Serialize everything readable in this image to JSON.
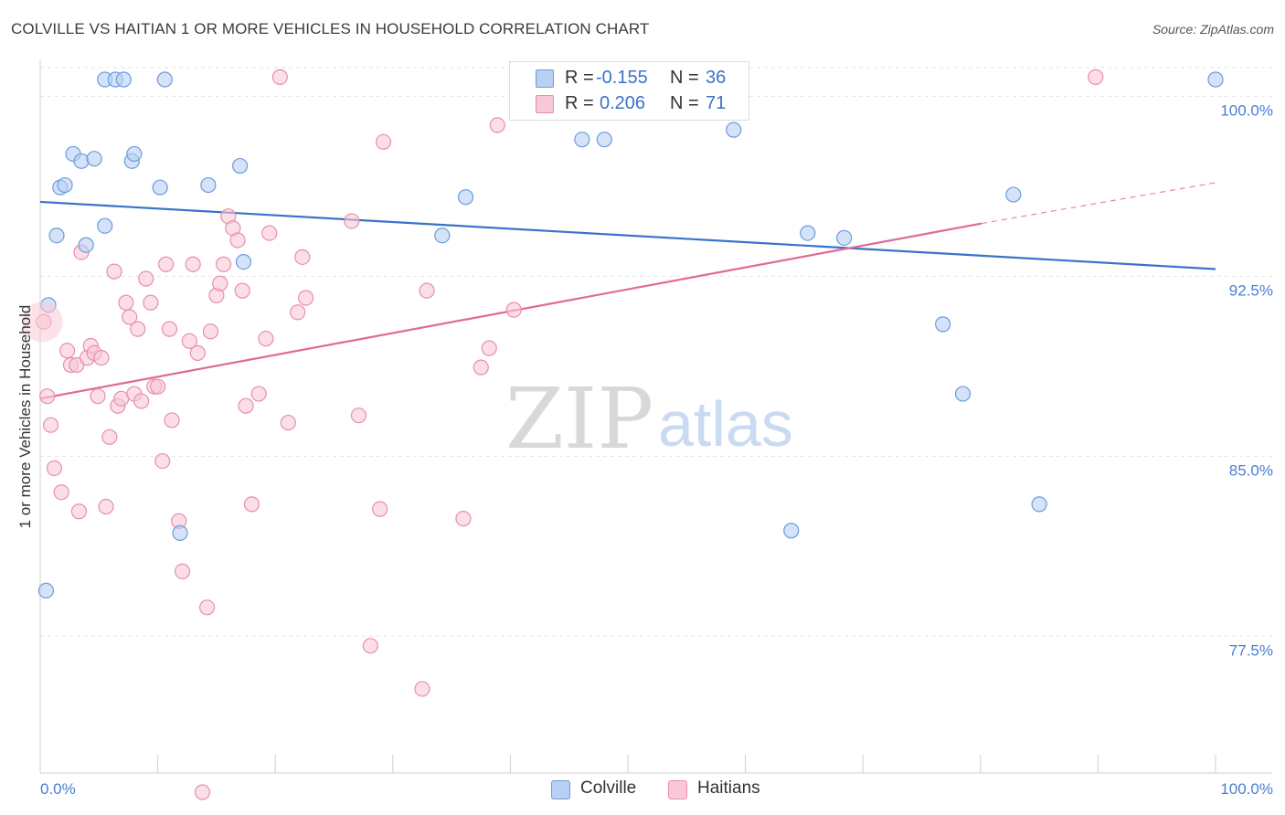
{
  "title": "COLVILLE VS HAITIAN 1 OR MORE VEHICLES IN HOUSEHOLD CORRELATION CHART",
  "source": "Source: ZipAtlas.com",
  "watermark": {
    "zip": "ZIP",
    "atlas": "atlas"
  },
  "legend": {
    "rows": [
      {
        "r_label": "R =",
        "r_value": "-0.155",
        "n_label": "N =",
        "n_value": "36"
      },
      {
        "r_label": "R =",
        "r_value": "0.206",
        "n_label": "N =",
        "n_value": "71"
      }
    ]
  },
  "bottom_legend": {
    "colville": "Colville",
    "haitians": "Haitians"
  },
  "chart_data": {
    "type": "scatter",
    "title": "COLVILLE VS HAITIAN 1 OR MORE VEHICLES IN HOUSEHOLD CORRELATION CHART",
    "xlabel": "",
    "ylabel": "1 or more Vehicles in Household",
    "xlim": [
      0,
      100
    ],
    "ylim": [
      71.8,
      101.5
    ],
    "x_tick_labels": [
      "0.0%",
      "100.0%"
    ],
    "y_ticks": [
      77.5,
      85.0,
      92.5,
      100.0
    ],
    "y_tick_labels": [
      "77.5%",
      "85.0%",
      "92.5%",
      "100.0%"
    ],
    "grid": true,
    "legend_position": "top-center",
    "colors": {
      "colville_fill": "#b8d0f2",
      "colville_stroke": "#6b9be0",
      "colville_line": "#3a72c9",
      "haitians_fill": "#f8c8d6",
      "haitians_stroke": "#e88fab",
      "haitians_line": "#e06a95",
      "axis_text": "#4a7fd4"
    },
    "series": [
      {
        "name": "Colville",
        "points": [
          [
            0.5,
            79.4
          ],
          [
            0.7,
            91.3
          ],
          [
            1.4,
            94.2
          ],
          [
            1.7,
            96.2
          ],
          [
            2.1,
            96.3
          ],
          [
            2.8,
            97.6
          ],
          [
            3.5,
            97.3
          ],
          [
            3.9,
            93.8
          ],
          [
            4.6,
            97.4
          ],
          [
            5.5,
            94.6
          ],
          [
            5.5,
            100.7
          ],
          [
            6.4,
            100.7
          ],
          [
            7.1,
            100.7
          ],
          [
            7.8,
            97.3
          ],
          [
            8.0,
            97.6
          ],
          [
            10.2,
            96.2
          ],
          [
            10.6,
            100.7
          ],
          [
            11.9,
            81.8
          ],
          [
            14.3,
            96.3
          ],
          [
            17.0,
            97.1
          ],
          [
            17.3,
            93.1
          ],
          [
            34.2,
            94.2
          ],
          [
            36.2,
            95.8
          ],
          [
            40.6,
            100.7
          ],
          [
            46.1,
            98.2
          ],
          [
            48.0,
            98.2
          ],
          [
            53.2,
            100.7
          ],
          [
            59.0,
            98.6
          ],
          [
            63.9,
            81.9
          ],
          [
            65.3,
            94.3
          ],
          [
            68.4,
            94.1
          ],
          [
            76.8,
            90.5
          ],
          [
            78.5,
            87.6
          ],
          [
            82.8,
            95.9
          ],
          [
            85.0,
            83.0
          ],
          [
            100.0,
            100.7
          ]
        ],
        "trend": {
          "x": [
            0,
            100
          ],
          "y": [
            95.6,
            92.8
          ]
        }
      },
      {
        "name": "Haitians",
        "points": [
          [
            0.3,
            90.6
          ],
          [
            0.6,
            87.5
          ],
          [
            0.9,
            86.3
          ],
          [
            1.2,
            84.5
          ],
          [
            1.8,
            83.5
          ],
          [
            2.3,
            89.4
          ],
          [
            2.6,
            88.8
          ],
          [
            3.1,
            88.8
          ],
          [
            3.3,
            82.7
          ],
          [
            3.5,
            93.5
          ],
          [
            4.0,
            89.1
          ],
          [
            4.3,
            89.6
          ],
          [
            4.6,
            89.3
          ],
          [
            4.9,
            87.5
          ],
          [
            5.2,
            89.1
          ],
          [
            5.6,
            82.9
          ],
          [
            5.9,
            85.8
          ],
          [
            6.3,
            92.7
          ],
          [
            6.6,
            87.1
          ],
          [
            6.9,
            87.4
          ],
          [
            7.3,
            91.4
          ],
          [
            7.6,
            90.8
          ],
          [
            8.0,
            87.6
          ],
          [
            8.3,
            90.3
          ],
          [
            8.6,
            87.3
          ],
          [
            9.0,
            92.4
          ],
          [
            9.4,
            91.4
          ],
          [
            9.7,
            87.9
          ],
          [
            10.0,
            87.9
          ],
          [
            10.4,
            84.8
          ],
          [
            10.7,
            93.0
          ],
          [
            11.0,
            90.3
          ],
          [
            11.2,
            86.5
          ],
          [
            11.8,
            82.3
          ],
          [
            12.1,
            80.2
          ],
          [
            12.7,
            89.8
          ],
          [
            13.0,
            93.0
          ],
          [
            13.4,
            89.3
          ],
          [
            13.8,
            71.0
          ],
          [
            14.2,
            78.7
          ],
          [
            14.5,
            90.2
          ],
          [
            15.0,
            91.7
          ],
          [
            15.3,
            92.2
          ],
          [
            15.6,
            93.0
          ],
          [
            16.0,
            95.0
          ],
          [
            16.4,
            94.5
          ],
          [
            16.8,
            94.0
          ],
          [
            17.2,
            91.9
          ],
          [
            17.5,
            87.1
          ],
          [
            18.0,
            83.0
          ],
          [
            18.6,
            87.6
          ],
          [
            19.2,
            89.9
          ],
          [
            19.5,
            94.3
          ],
          [
            20.4,
            100.8
          ],
          [
            21.1,
            86.4
          ],
          [
            21.9,
            91.0
          ],
          [
            22.3,
            93.3
          ],
          [
            22.6,
            91.6
          ],
          [
            26.5,
            94.8
          ],
          [
            27.1,
            86.7
          ],
          [
            28.1,
            77.1
          ],
          [
            28.9,
            82.8
          ],
          [
            29.2,
            98.1
          ],
          [
            32.5,
            75.3
          ],
          [
            32.9,
            91.9
          ],
          [
            36.0,
            82.4
          ],
          [
            37.5,
            88.7
          ],
          [
            38.2,
            89.5
          ],
          [
            38.9,
            98.8
          ],
          [
            40.3,
            91.1
          ],
          [
            89.8,
            100.8
          ]
        ],
        "trend": {
          "x": [
            0,
            80.1
          ],
          "y": [
            87.4,
            94.7
          ]
        },
        "trend_dashed": {
          "x": [
            80.1,
            100
          ],
          "y": [
            94.7,
            96.4
          ]
        }
      }
    ]
  }
}
